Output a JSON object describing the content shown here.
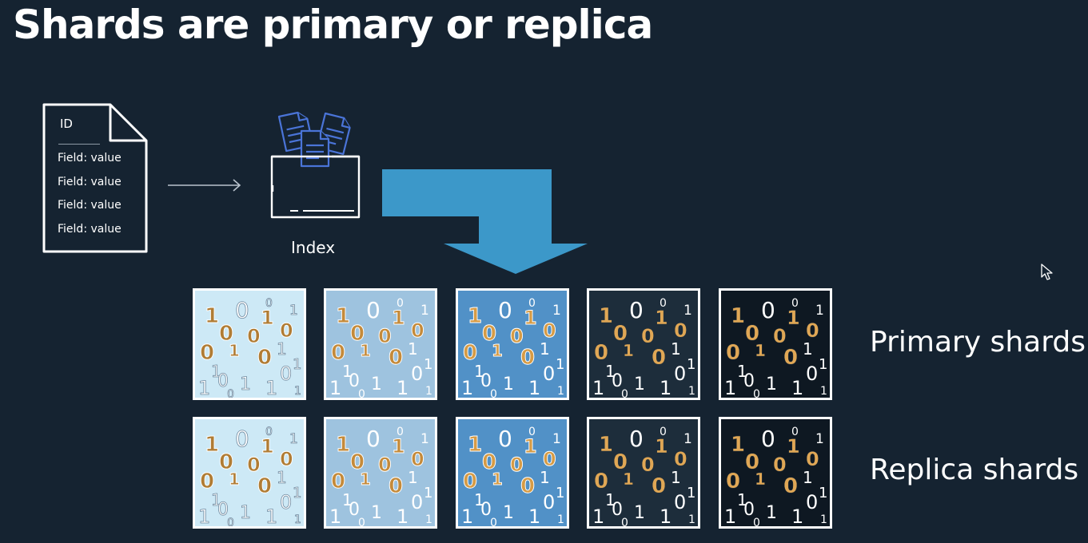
{
  "title": "Shards are primary or replica",
  "document": {
    "id_label": "ID",
    "fields": [
      "Field: value",
      "Field: value",
      "Field: value",
      "Field: value"
    ]
  },
  "index": {
    "label": "Index"
  },
  "rows": [
    {
      "label": "Primary shards"
    },
    {
      "label": "Replica shards"
    }
  ],
  "shard_columns": [
    {
      "background": "#cde9f6",
      "digit_color": "#b07c34",
      "white_color": "#ffffff"
    },
    {
      "background": "#9ec3df",
      "digit_color": "#c48a3a",
      "white_color": "#ffffff"
    },
    {
      "background": "#5191c7",
      "digit_color": "#d69b45",
      "white_color": "#ffffff"
    },
    {
      "background": "#1d2d3b",
      "digit_color": "#e0a755",
      "white_color": "#ffffff"
    },
    {
      "background": "#0e1822",
      "digit_color": "#e0a755",
      "white_color": "#ffffff"
    }
  ],
  "colors": {
    "background": "#152331",
    "arrow": "#3c98c9",
    "icon_blue": "#4a74d8",
    "outline": "#ffffff"
  }
}
